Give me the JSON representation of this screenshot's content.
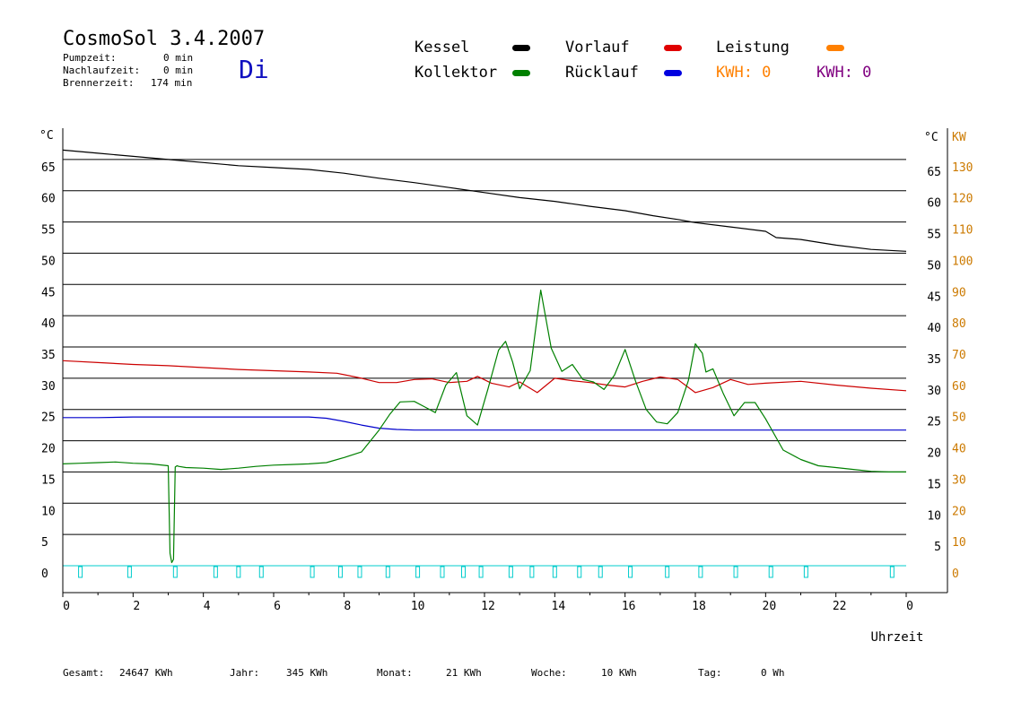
{
  "header": {
    "title": "CosmoSol 3.4.2007",
    "pump_label": "Pumpzeit:",
    "pump_value": "0 min",
    "follow_label": "Nachlaufzeit:",
    "follow_value": "0 min",
    "burner_label": "Brennerzeit:",
    "burner_value": "174 min",
    "weekday": "Di"
  },
  "legend": {
    "kessel": "Kessel",
    "kollektor": "Kollektor",
    "vorlauf": "Vorlauf",
    "ruecklauf": "Rücklauf",
    "leistung": "Leistung",
    "kwh_orange": "KWH: 0",
    "kwh_purple": "KWH: 0"
  },
  "colors": {
    "kessel": "#000000",
    "kollektor": "#008000",
    "vorlauf": "#cc0000",
    "ruecklauf": "#0000cc",
    "leistung": "#ff8000",
    "kwh_purple": "#800080",
    "pump": "#00cccc",
    "kw_axis": "#cc7a00"
  },
  "footer": {
    "gesamt_label": "Gesamt:",
    "gesamt_value": "24647 KWh",
    "jahr_label": "Jahr:",
    "jahr_value": "345 KWh",
    "monat_label": "Monat:",
    "monat_value": "21 KWh",
    "woche_label": "Woche:",
    "woche_value": "10 KWh",
    "tag_label": "Tag:",
    "tag_value": "0 Wh"
  },
  "chart_data": {
    "type": "line",
    "xlabel": "Uhrzeit",
    "y_unit_left": "°C",
    "y_unit_right": "°C",
    "y2_unit": "KW",
    "xlim": [
      0,
      24
    ],
    "ylim": [
      0,
      70
    ],
    "y2lim": [
      0,
      140
    ],
    "x_ticks": [
      "0",
      "2",
      "4",
      "6",
      "8",
      "10",
      "12",
      "14",
      "16",
      "18",
      "20",
      "22",
      "0"
    ],
    "y_ticks": [
      0,
      5,
      10,
      15,
      20,
      25,
      30,
      35,
      40,
      45,
      50,
      55,
      60,
      65
    ],
    "y_tick_labels_left": [
      "0",
      "5",
      "10",
      "15",
      "20",
      "25",
      "30",
      "35",
      "40",
      "45",
      "50",
      "55",
      "60",
      "65"
    ],
    "y_tick_labels_right": [
      "",
      "5",
      "10",
      "15",
      "20",
      "25",
      "30",
      "35",
      "40",
      "45",
      "50",
      "55",
      "60",
      "65"
    ],
    "y2_tick_labels": [
      "0",
      "10",
      "20",
      "30",
      "40",
      "50",
      "60",
      "70",
      "80",
      "90",
      "100",
      "110",
      "120",
      "130"
    ],
    "grid": "horizontal",
    "series": [
      {
        "name": "Kessel",
        "color": "#000000",
        "x": [
          0,
          1,
          2,
          3,
          4,
          5,
          6,
          7,
          8,
          9,
          10,
          11,
          12,
          13,
          14,
          15,
          16,
          16.8,
          17.5,
          18,
          19,
          20,
          20.3,
          21,
          22,
          23,
          24
        ],
        "y": [
          66.5,
          66,
          65.5,
          65,
          64.5,
          64,
          63.7,
          63.4,
          62.8,
          62,
          61.3,
          60.5,
          59.7,
          58.9,
          58.3,
          57.5,
          56.8,
          56,
          55.4,
          54.9,
          54.2,
          53.5,
          52.5,
          52.2,
          51.3,
          50.6,
          50.3
        ]
      },
      {
        "name": "Vorlauf",
        "color": "#cc0000",
        "x": [
          0,
          1,
          2,
          3,
          4,
          5,
          6,
          7,
          7.8,
          8.5,
          9,
          9.5,
          10,
          10.5,
          11,
          11.5,
          11.8,
          12.2,
          12.7,
          13,
          13.5,
          14,
          14.5,
          15,
          15.5,
          16,
          16.5,
          17,
          17.5,
          18,
          18.5,
          19,
          19.5,
          20,
          21,
          22,
          23,
          24
        ],
        "y": [
          32.8,
          32.5,
          32.2,
          32,
          31.7,
          31.4,
          31.2,
          31,
          30.8,
          30,
          29.3,
          29.3,
          29.8,
          29.9,
          29.3,
          29.5,
          30.3,
          29.2,
          28.6,
          29.4,
          27.7,
          30,
          29.6,
          29.3,
          28.9,
          28.6,
          29.5,
          30.2,
          29.8,
          27.7,
          28.5,
          29.8,
          29,
          29.2,
          29.5,
          28.9,
          28.4,
          28
        ]
      },
      {
        "name": "Rücklauf",
        "color": "#0000cc",
        "x": [
          0,
          1,
          2,
          3,
          4,
          5,
          6,
          7,
          7.5,
          8,
          8.5,
          9,
          9.5,
          10,
          12,
          14,
          16,
          18,
          20,
          22,
          24
        ],
        "y": [
          23.7,
          23.7,
          23.8,
          23.8,
          23.8,
          23.8,
          23.8,
          23.8,
          23.6,
          23.1,
          22.5,
          22,
          21.8,
          21.7,
          21.7,
          21.7,
          21.7,
          21.7,
          21.7,
          21.7,
          21.7
        ]
      },
      {
        "name": "Kollektor",
        "color": "#008000",
        "x": [
          0,
          0.5,
          1,
          1.5,
          2,
          2.5,
          3,
          3.05,
          3.1,
          3.15,
          3.2,
          3.25,
          3.3,
          3.5,
          4,
          4.5,
          5,
          5.5,
          6,
          6.5,
          7,
          7.5,
          8,
          8.5,
          9,
          9.3,
          9.6,
          10,
          10.3,
          10.6,
          10.9,
          11.2,
          11.5,
          11.8,
          12.1,
          12.4,
          12.6,
          12.8,
          13,
          13.3,
          13.6,
          13.9,
          14.2,
          14.5,
          14.8,
          15.1,
          15.4,
          15.7,
          16,
          16.3,
          16.6,
          16.9,
          17.2,
          17.5,
          17.8,
          18,
          18.2,
          18.3,
          18.5,
          18.8,
          19.1,
          19.4,
          19.7,
          20,
          20.5,
          21,
          21.5,
          22,
          22.5,
          23,
          23.5,
          24
        ],
        "y": [
          16.3,
          16.4,
          16.5,
          16.6,
          16.4,
          16.3,
          16.0,
          2,
          0.5,
          1,
          15.8,
          16,
          15.9,
          15.7,
          15.6,
          15.4,
          15.6,
          15.9,
          16.1,
          16.2,
          16.3,
          16.5,
          17.3,
          18.2,
          21.7,
          24.2,
          26.2,
          26.3,
          25.4,
          24.5,
          28.9,
          30.9,
          24,
          22.5,
          28.3,
          34.5,
          35.9,
          32.6,
          28.3,
          31.2,
          44.1,
          34.8,
          31.1,
          32.2,
          29.8,
          29.4,
          28.2,
          30.5,
          34.6,
          29.5,
          25,
          23,
          22.7,
          24.5,
          29.6,
          35.5,
          34,
          31,
          31.5,
          27.5,
          24,
          26.1,
          26.1,
          23.5,
          18.5,
          17,
          16,
          15.7,
          15.4,
          15.1,
          15,
          15
        ]
      }
    ],
    "pump_pulses_x": [
      0.5,
      1.9,
      3.2,
      4.35,
      5.0,
      5.65,
      7.1,
      7.9,
      8.45,
      9.25,
      10.1,
      10.8,
      11.4,
      11.9,
      12.75,
      13.35,
      14.0,
      14.7,
      15.3,
      16.15,
      17.2,
      18.15,
      19.15,
      20.15,
      21.15,
      23.6
    ]
  }
}
